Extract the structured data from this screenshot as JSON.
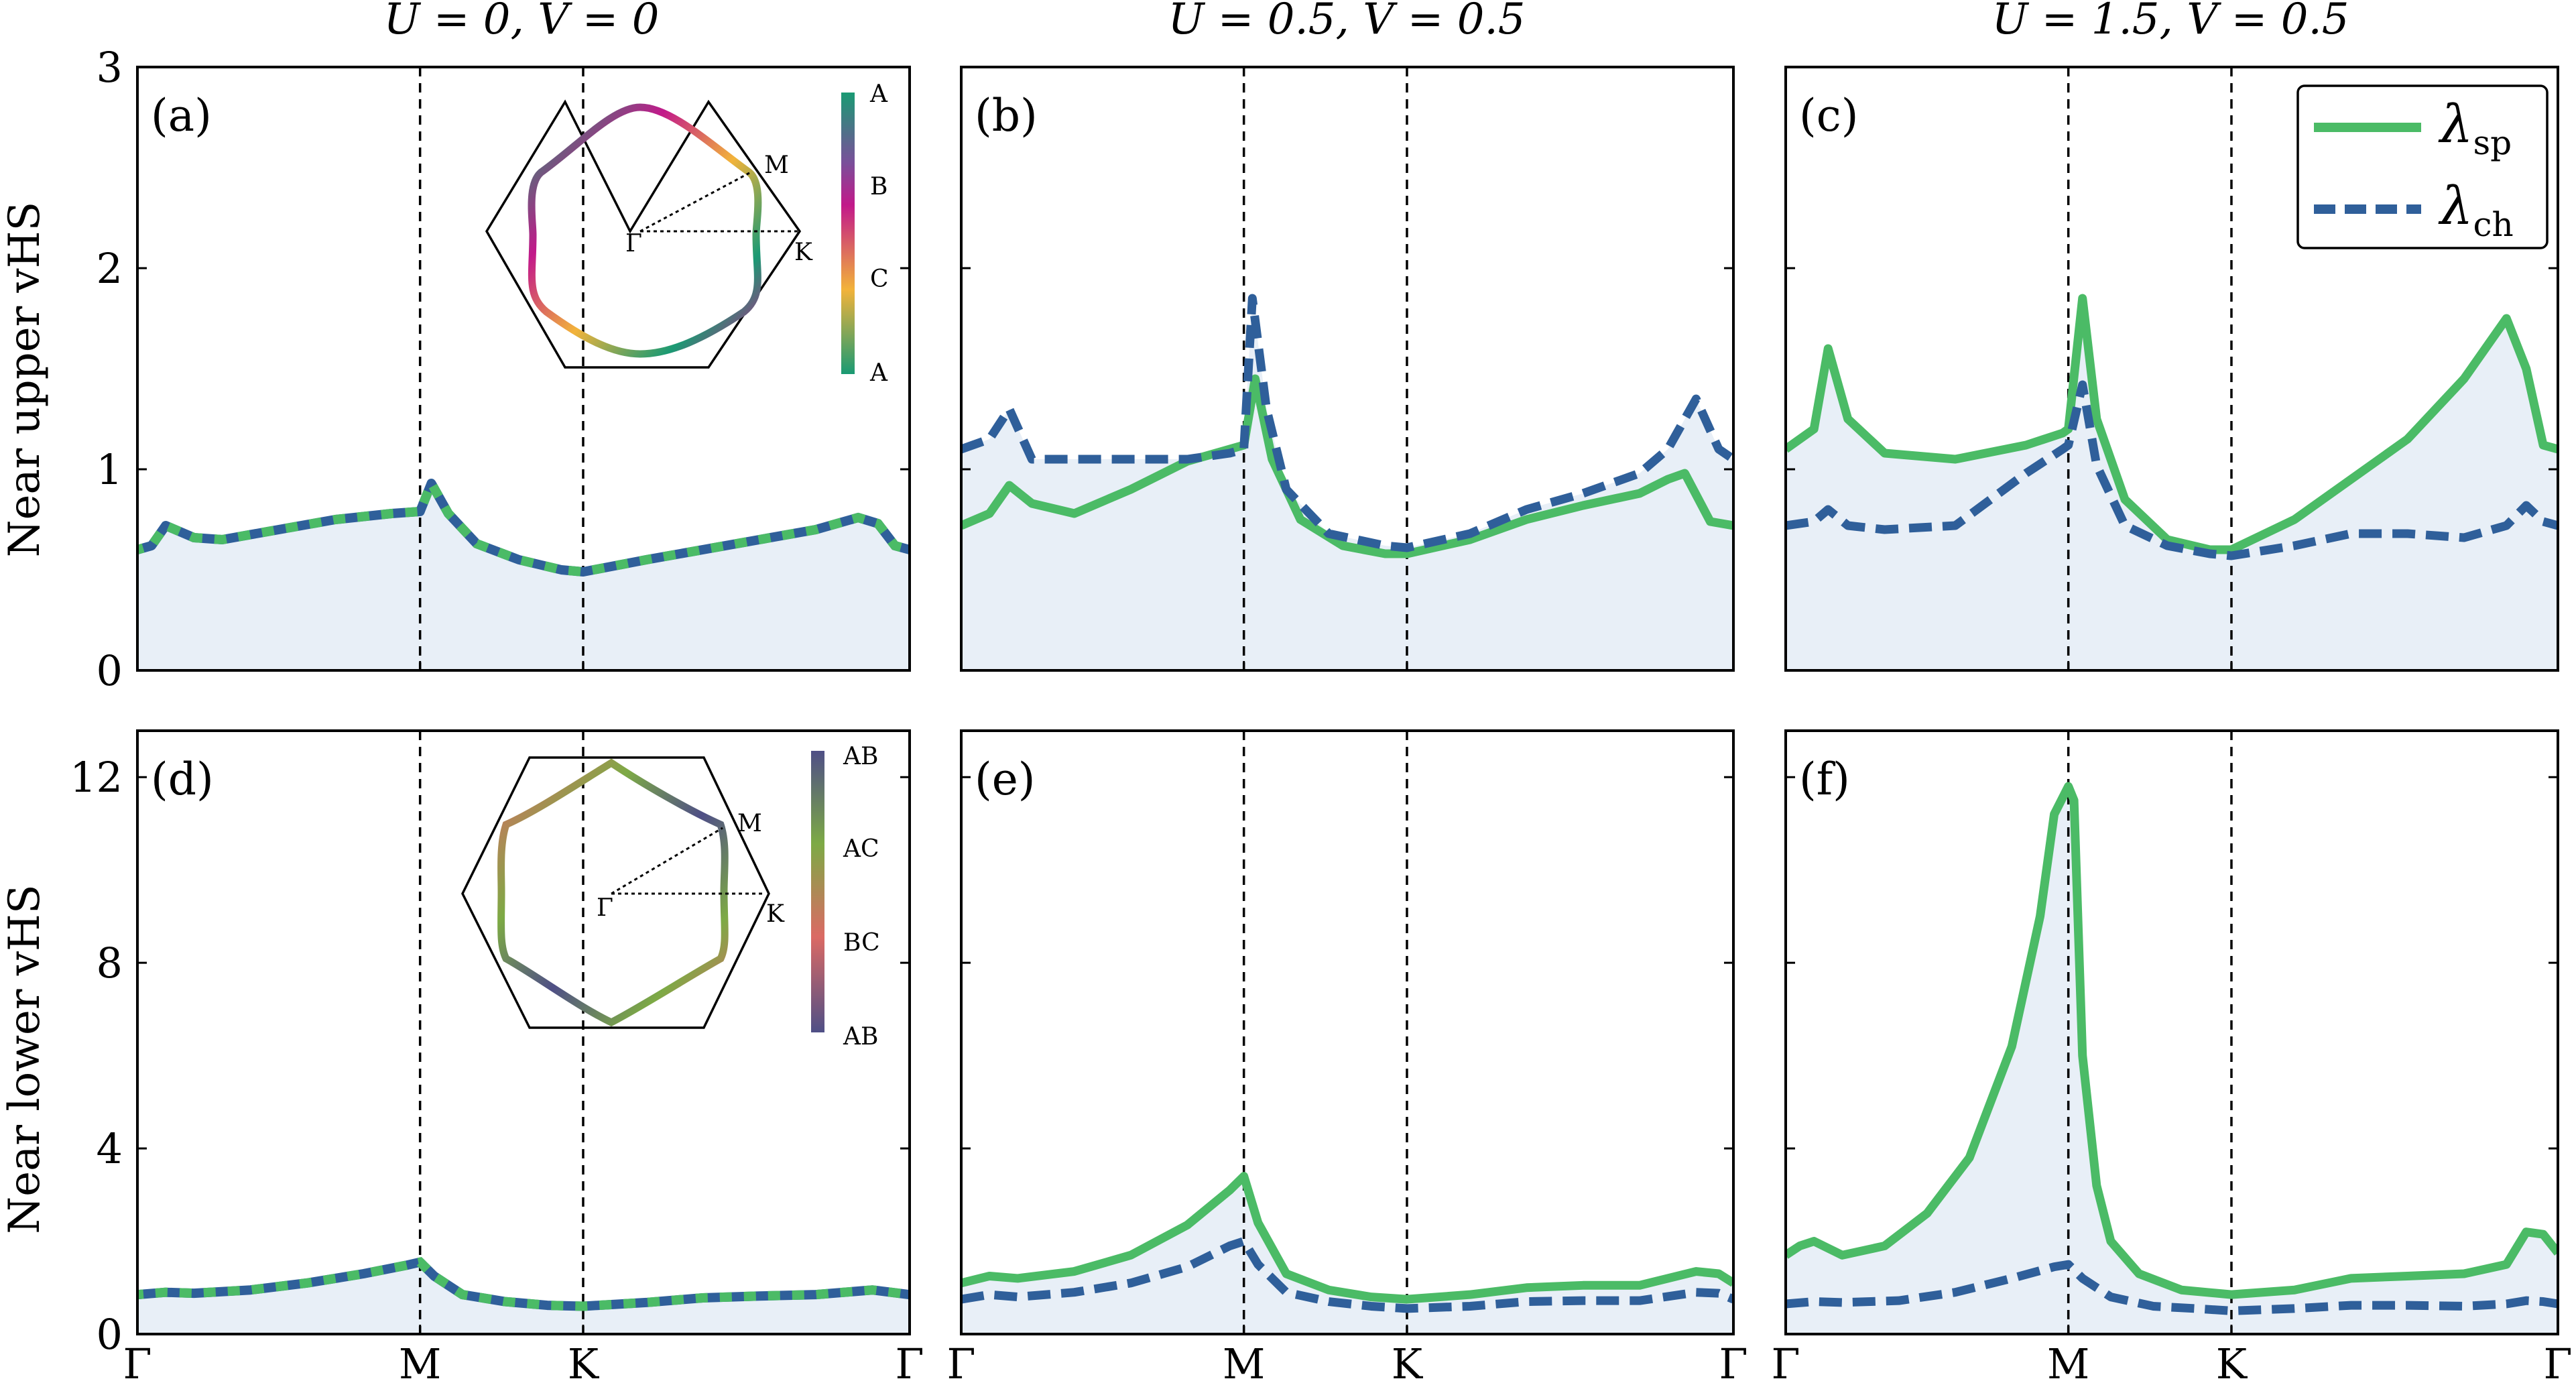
{
  "colors": {
    "sp": "#4bbb66",
    "ch": "#2f5f9a",
    "fill": "#e8eff7",
    "upper_inset_gradient": [
      "#1a9a73",
      "#7a4f9a",
      "#c2198a",
      "#f2b33a",
      "#1a9a73"
    ],
    "lower_inset_gradient": [
      "#4f4f86",
      "#7daa45",
      "#db6a64",
      "#4f4f86"
    ]
  },
  "column_titles": [
    "U = 0, V = 0",
    "U = 0.5, V = 0.5",
    "U = 1.5, V = 0.5"
  ],
  "row_labels": [
    "Near upper vHS",
    "Near lower vHS"
  ],
  "x_tick_labels": [
    "Γ",
    "M",
    "K",
    "Γ"
  ],
  "legend": {
    "sp_main": "λ",
    "sp_sub": "sp",
    "ch_main": "λ",
    "ch_sub": "ch"
  },
  "insets": {
    "upper": {
      "colorbar_labels": [
        "A",
        "B",
        "C",
        "A"
      ],
      "point_labels": {
        "gamma": "Γ",
        "m": "M",
        "k": "K"
      }
    },
    "lower": {
      "colorbar_labels": [
        "AB",
        "AC",
        "BC",
        "AB"
      ],
      "point_labels": {
        "gamma": "Γ",
        "m": "M",
        "k": "K"
      }
    }
  },
  "chart_data": [
    {
      "panel": "(a)",
      "type": "line",
      "xlabel": "",
      "ylabel": "Near upper vHS",
      "ylim": [
        0,
        3
      ],
      "yticks": [
        0,
        1,
        2,
        3
      ],
      "xticks": [
        0,
        1,
        1.577,
        2.732
      ],
      "x_tick_labels": [
        "Γ",
        "M",
        "K",
        "Γ"
      ],
      "vlines": [
        1,
        1.577
      ],
      "series": [
        {
          "name": "λsp",
          "x": [
            0,
            0.05,
            0.1,
            0.2,
            0.3,
            0.5,
            0.7,
            0.9,
            1.0,
            1.04,
            1.1,
            1.2,
            1.35,
            1.5,
            1.577,
            1.8,
            2.0,
            2.2,
            2.4,
            2.55,
            2.62,
            2.68,
            2.732
          ],
          "values": [
            0.6,
            0.62,
            0.72,
            0.66,
            0.65,
            0.7,
            0.75,
            0.78,
            0.79,
            0.93,
            0.78,
            0.63,
            0.55,
            0.5,
            0.49,
            0.55,
            0.6,
            0.65,
            0.7,
            0.76,
            0.73,
            0.62,
            0.6
          ]
        },
        {
          "name": "λch",
          "x": [
            0,
            0.05,
            0.1,
            0.2,
            0.3,
            0.5,
            0.7,
            0.9,
            1.0,
            1.04,
            1.1,
            1.2,
            1.35,
            1.5,
            1.577,
            1.8,
            2.0,
            2.2,
            2.4,
            2.55,
            2.62,
            2.68,
            2.732
          ],
          "values": [
            0.6,
            0.62,
            0.72,
            0.66,
            0.65,
            0.7,
            0.75,
            0.78,
            0.79,
            0.93,
            0.78,
            0.63,
            0.55,
            0.5,
            0.49,
            0.55,
            0.6,
            0.65,
            0.7,
            0.76,
            0.73,
            0.62,
            0.6
          ]
        }
      ]
    },
    {
      "panel": "(b)",
      "type": "line",
      "xlabel": "",
      "ylabel": "",
      "ylim": [
        0,
        3
      ],
      "yticks": [
        0,
        1,
        2,
        3
      ],
      "xticks": [
        0,
        1,
        1.577,
        2.732
      ],
      "x_tick_labels": [
        "Γ",
        "M",
        "K",
        "Γ"
      ],
      "vlines": [
        1,
        1.577
      ],
      "series": [
        {
          "name": "λsp",
          "x": [
            0,
            0.1,
            0.17,
            0.25,
            0.4,
            0.6,
            0.8,
            0.95,
            1.0,
            1.04,
            1.1,
            1.2,
            1.35,
            1.5,
            1.577,
            1.8,
            2.0,
            2.2,
            2.4,
            2.5,
            2.56,
            2.65,
            2.732
          ],
          "values": [
            0.72,
            0.78,
            0.92,
            0.83,
            0.78,
            0.9,
            1.04,
            1.1,
            1.12,
            1.45,
            1.05,
            0.75,
            0.62,
            0.58,
            0.58,
            0.65,
            0.75,
            0.82,
            0.88,
            0.95,
            0.98,
            0.74,
            0.72
          ]
        },
        {
          "name": "λch",
          "x": [
            0,
            0.1,
            0.17,
            0.25,
            0.4,
            0.6,
            0.8,
            0.95,
            1.0,
            1.03,
            1.08,
            1.15,
            1.3,
            1.5,
            1.577,
            1.8,
            2.0,
            2.2,
            2.4,
            2.5,
            2.6,
            2.68,
            2.732
          ],
          "values": [
            1.1,
            1.15,
            1.3,
            1.05,
            1.05,
            1.05,
            1.05,
            1.08,
            1.1,
            1.85,
            1.3,
            0.9,
            0.68,
            0.62,
            0.61,
            0.68,
            0.8,
            0.88,
            0.98,
            1.1,
            1.35,
            1.1,
            1.05
          ]
        }
      ]
    },
    {
      "panel": "(c)",
      "type": "line",
      "xlabel": "",
      "ylabel": "",
      "ylim": [
        0,
        3
      ],
      "yticks": [
        0,
        1,
        2,
        3
      ],
      "xticks": [
        0,
        1,
        1.577,
        2.732
      ],
      "x_tick_labels": [
        "Γ",
        "M",
        "K",
        "Γ"
      ],
      "vlines": [
        1,
        1.577
      ],
      "series": [
        {
          "name": "λsp",
          "x": [
            0,
            0.1,
            0.15,
            0.22,
            0.35,
            0.6,
            0.85,
            0.98,
            1.0,
            1.05,
            1.1,
            1.2,
            1.35,
            1.5,
            1.577,
            1.8,
            2.0,
            2.2,
            2.4,
            2.55,
            2.62,
            2.68,
            2.732
          ],
          "values": [
            1.1,
            1.2,
            1.6,
            1.25,
            1.08,
            1.05,
            1.12,
            1.18,
            1.2,
            1.85,
            1.25,
            0.85,
            0.65,
            0.6,
            0.6,
            0.75,
            0.95,
            1.15,
            1.45,
            1.75,
            1.5,
            1.12,
            1.1
          ]
        },
        {
          "name": "λch",
          "x": [
            0,
            0.1,
            0.15,
            0.22,
            0.35,
            0.6,
            0.85,
            0.98,
            1.0,
            1.05,
            1.1,
            1.2,
            1.35,
            1.5,
            1.577,
            1.8,
            2.0,
            2.2,
            2.4,
            2.55,
            2.62,
            2.68,
            2.732
          ],
          "values": [
            0.72,
            0.74,
            0.8,
            0.72,
            0.7,
            0.72,
            0.98,
            1.1,
            1.12,
            1.42,
            1.02,
            0.72,
            0.62,
            0.58,
            0.57,
            0.62,
            0.68,
            0.68,
            0.66,
            0.72,
            0.82,
            0.74,
            0.72
          ]
        }
      ]
    },
    {
      "panel": "(d)",
      "type": "line",
      "xlabel": "",
      "ylabel": "Near lower vHS",
      "ylim": [
        0,
        13
      ],
      "yticks": [
        0,
        4,
        8,
        12
      ],
      "xticks": [
        0,
        1,
        1.577,
        2.732
      ],
      "x_tick_labels": [
        "Γ",
        "M",
        "K",
        "Γ"
      ],
      "vlines": [
        1,
        1.577
      ],
      "series": [
        {
          "name": "λsp",
          "x": [
            0,
            0.1,
            0.2,
            0.4,
            0.6,
            0.8,
            0.95,
            1.0,
            1.05,
            1.15,
            1.3,
            1.45,
            1.577,
            1.8,
            2.0,
            2.2,
            2.4,
            2.6,
            2.732
          ],
          "values": [
            0.85,
            0.9,
            0.88,
            0.95,
            1.1,
            1.3,
            1.48,
            1.55,
            1.25,
            0.85,
            0.7,
            0.62,
            0.6,
            0.68,
            0.78,
            0.82,
            0.85,
            0.95,
            0.85
          ]
        },
        {
          "name": "λch",
          "x": [
            0,
            0.1,
            0.2,
            0.4,
            0.6,
            0.8,
            0.95,
            1.0,
            1.05,
            1.15,
            1.3,
            1.45,
            1.577,
            1.8,
            2.0,
            2.2,
            2.4,
            2.6,
            2.732
          ],
          "values": [
            0.85,
            0.9,
            0.88,
            0.95,
            1.1,
            1.3,
            1.48,
            1.55,
            1.25,
            0.85,
            0.7,
            0.62,
            0.6,
            0.68,
            0.78,
            0.82,
            0.85,
            0.95,
            0.85
          ]
        }
      ]
    },
    {
      "panel": "(e)",
      "type": "line",
      "xlabel": "",
      "ylabel": "",
      "ylim": [
        0,
        13
      ],
      "yticks": [
        0,
        4,
        8,
        12
      ],
      "xticks": [
        0,
        1,
        1.577,
        2.732
      ],
      "x_tick_labels": [
        "Γ",
        "M",
        "K",
        "Γ"
      ],
      "vlines": [
        1,
        1.577
      ],
      "series": [
        {
          "name": "λsp",
          "x": [
            0,
            0.1,
            0.2,
            0.4,
            0.6,
            0.8,
            0.95,
            1.0,
            1.05,
            1.15,
            1.3,
            1.45,
            1.577,
            1.8,
            2.0,
            2.2,
            2.4,
            2.6,
            2.68,
            2.732
          ],
          "values": [
            1.1,
            1.25,
            1.2,
            1.35,
            1.7,
            2.35,
            3.1,
            3.4,
            2.4,
            1.3,
            0.95,
            0.8,
            0.75,
            0.85,
            1.0,
            1.05,
            1.05,
            1.35,
            1.3,
            1.1
          ]
        },
        {
          "name": "λch",
          "x": [
            0,
            0.1,
            0.2,
            0.4,
            0.6,
            0.8,
            0.95,
            1.0,
            1.05,
            1.15,
            1.3,
            1.45,
            1.577,
            1.8,
            2.0,
            2.2,
            2.4,
            2.6,
            2.68,
            2.732
          ],
          "values": [
            0.75,
            0.85,
            0.8,
            0.9,
            1.1,
            1.45,
            1.9,
            2.0,
            1.5,
            0.9,
            0.7,
            0.6,
            0.55,
            0.6,
            0.7,
            0.72,
            0.72,
            0.9,
            0.88,
            0.75
          ]
        }
      ]
    },
    {
      "panel": "(f)",
      "type": "line",
      "xlabel": "",
      "ylabel": "",
      "ylim": [
        0,
        13
      ],
      "yticks": [
        0,
        4,
        8,
        12
      ],
      "xticks": [
        0,
        1,
        1.577,
        2.732
      ],
      "x_tick_labels": [
        "Γ",
        "M",
        "K",
        "Γ"
      ],
      "vlines": [
        1,
        1.577
      ],
      "series": [
        {
          "name": "λsp",
          "x": [
            0,
            0.05,
            0.1,
            0.2,
            0.35,
            0.5,
            0.65,
            0.8,
            0.9,
            0.95,
            1.0,
            1.02,
            1.05,
            1.1,
            1.15,
            1.25,
            1.4,
            1.577,
            1.8,
            2.0,
            2.2,
            2.4,
            2.55,
            2.62,
            2.68,
            2.732
          ],
          "values": [
            1.7,
            1.9,
            2.0,
            1.7,
            1.9,
            2.6,
            3.8,
            6.2,
            9.0,
            11.2,
            11.8,
            11.5,
            6.0,
            3.2,
            2.0,
            1.3,
            0.95,
            0.85,
            0.95,
            1.2,
            1.25,
            1.3,
            1.5,
            2.2,
            2.15,
            1.75
          ]
        },
        {
          "name": "λch",
          "x": [
            0,
            0.1,
            0.2,
            0.4,
            0.6,
            0.8,
            0.95,
            1.0,
            1.05,
            1.15,
            1.3,
            1.45,
            1.577,
            1.8,
            2.0,
            2.2,
            2.4,
            2.55,
            2.62,
            2.68,
            2.732
          ],
          "values": [
            0.65,
            0.7,
            0.68,
            0.72,
            0.9,
            1.2,
            1.45,
            1.5,
            1.2,
            0.8,
            0.6,
            0.55,
            0.5,
            0.55,
            0.62,
            0.62,
            0.6,
            0.65,
            0.72,
            0.7,
            0.65
          ]
        }
      ]
    }
  ]
}
